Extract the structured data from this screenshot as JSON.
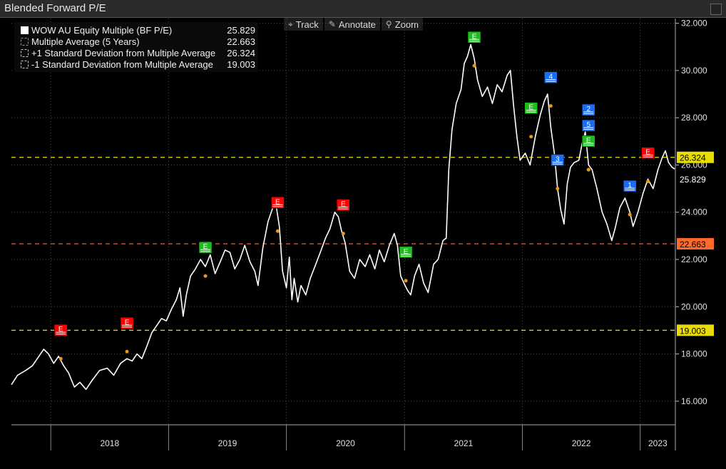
{
  "window": {
    "title": "Blended Forward P/E"
  },
  "toolbar": {
    "items": [
      {
        "label": "Track",
        "icon": "crosshair-icon"
      },
      {
        "label": "Annotate",
        "icon": "pencil-icon"
      },
      {
        "label": "Zoom",
        "icon": "magnifier-icon"
      }
    ]
  },
  "colors": {
    "series": "#ffffff",
    "average": "#ff6a2a",
    "std": "#e8dd00",
    "grid": "#4a4a4a",
    "event_red": "#ff0000",
    "event_green": "#1ebd1e",
    "event_blue": "#1a6cf5"
  },
  "chart_data": {
    "type": "line",
    "title": "Blended Forward P/E",
    "xlabel": "",
    "ylabel": "",
    "xlim": [
      "2017-09-01",
      "2023-04-20"
    ],
    "ylim": [
      15,
      32.2
    ],
    "y_ticks": [
      "32.000",
      "30.000",
      "28.000",
      "26.000",
      "24.000",
      "22.000",
      "20.000",
      "18.000",
      "16.000"
    ],
    "x_tick_labels": [
      "2018",
      "2019",
      "2020",
      "2021",
      "2022",
      "2023"
    ],
    "legend": [
      {
        "name": "WOW AU Equity Multiple (BF P/E)",
        "value": "25.829",
        "color": "#ffffff",
        "style": "solid"
      },
      {
        "name": "Multiple Average (5 Years)",
        "value": "22.663",
        "color": "#ff6a2a",
        "style": "dashed"
      },
      {
        "name": "+1 Standard Deviation from Multiple Average",
        "value": "26.324",
        "color": "#e8dd00",
        "style": "dashed"
      },
      {
        "name": "-1 Standard Deviation from Multiple Average",
        "value": "19.003",
        "color": "#e8dd00",
        "style": "dashed"
      }
    ],
    "series": [
      {
        "name": "WOW AU Equity Multiple (BF P/E)",
        "points": [
          [
            "2017-09-01",
            16.7
          ],
          [
            "2017-09-20",
            17.1
          ],
          [
            "2017-10-15",
            17.3
          ],
          [
            "2017-11-05",
            17.5
          ],
          [
            "2017-11-25",
            17.9
          ],
          [
            "2017-12-10",
            18.2
          ],
          [
            "2017-12-25",
            18.0
          ],
          [
            "2018-01-10",
            17.6
          ],
          [
            "2018-01-25",
            17.9
          ],
          [
            "2018-02-10",
            17.5
          ],
          [
            "2018-02-25",
            17.2
          ],
          [
            "2018-03-15",
            16.6
          ],
          [
            "2018-04-01",
            16.8
          ],
          [
            "2018-04-20",
            16.5
          ],
          [
            "2018-05-10",
            16.9
          ],
          [
            "2018-06-01",
            17.3
          ],
          [
            "2018-06-25",
            17.4
          ],
          [
            "2018-07-15",
            17.1
          ],
          [
            "2018-08-05",
            17.6
          ],
          [
            "2018-08-25",
            17.8
          ],
          [
            "2018-09-10",
            17.7
          ],
          [
            "2018-09-25",
            18.0
          ],
          [
            "2018-10-10",
            17.8
          ],
          [
            "2018-10-25",
            18.3
          ],
          [
            "2018-11-10",
            18.9
          ],
          [
            "2018-11-25",
            19.2
          ],
          [
            "2018-12-10",
            19.5
          ],
          [
            "2018-12-25",
            19.4
          ],
          [
            "2019-01-10",
            19.9
          ],
          [
            "2019-01-25",
            20.3
          ],
          [
            "2019-02-05",
            20.8
          ],
          [
            "2019-02-15",
            19.6
          ],
          [
            "2019-02-25",
            20.5
          ],
          [
            "2019-03-10",
            21.3
          ],
          [
            "2019-03-25",
            21.6
          ],
          [
            "2019-04-10",
            22.0
          ],
          [
            "2019-04-25",
            21.7
          ],
          [
            "2019-05-10",
            22.2
          ],
          [
            "2019-05-25",
            21.4
          ],
          [
            "2019-06-10",
            21.9
          ],
          [
            "2019-06-25",
            22.4
          ],
          [
            "2019-07-10",
            22.3
          ],
          [
            "2019-07-25",
            21.6
          ],
          [
            "2019-08-10",
            22.0
          ],
          [
            "2019-08-25",
            22.6
          ],
          [
            "2019-09-10",
            21.9
          ],
          [
            "2019-09-25",
            21.5
          ],
          [
            "2019-10-05",
            20.9
          ],
          [
            "2019-10-20",
            22.5
          ],
          [
            "2019-11-05",
            23.6
          ],
          [
            "2019-11-20",
            24.2
          ],
          [
            "2019-11-30",
            24.3
          ],
          [
            "2019-12-10",
            23.4
          ],
          [
            "2019-12-20",
            21.5
          ],
          [
            "2020-01-01",
            20.8
          ],
          [
            "2020-01-10",
            22.1
          ],
          [
            "2020-01-18",
            20.3
          ],
          [
            "2020-01-25",
            21.2
          ],
          [
            "2020-02-05",
            20.2
          ],
          [
            "2020-02-15",
            20.9
          ],
          [
            "2020-03-01",
            20.5
          ],
          [
            "2020-03-15",
            21.2
          ],
          [
            "2020-04-01",
            21.8
          ],
          [
            "2020-04-15",
            22.3
          ],
          [
            "2020-05-01",
            22.9
          ],
          [
            "2020-05-15",
            23.3
          ],
          [
            "2020-05-30",
            24.0
          ],
          [
            "2020-06-10",
            23.8
          ],
          [
            "2020-06-20",
            23.2
          ],
          [
            "2020-07-01",
            22.7
          ],
          [
            "2020-07-15",
            21.5
          ],
          [
            "2020-07-30",
            21.2
          ],
          [
            "2020-08-15",
            22.0
          ],
          [
            "2020-09-01",
            21.7
          ],
          [
            "2020-09-15",
            22.2
          ],
          [
            "2020-10-01",
            21.6
          ],
          [
            "2020-10-15",
            22.4
          ],
          [
            "2020-10-30",
            21.9
          ],
          [
            "2020-11-15",
            22.6
          ],
          [
            "2020-11-30",
            23.1
          ],
          [
            "2020-12-10",
            22.6
          ],
          [
            "2020-12-20",
            21.3
          ],
          [
            "2020-12-30",
            21.0
          ],
          [
            "2021-01-10",
            20.7
          ],
          [
            "2021-01-20",
            20.5
          ],
          [
            "2021-02-01",
            21.3
          ],
          [
            "2021-02-15",
            21.8
          ],
          [
            "2021-03-01",
            21.0
          ],
          [
            "2021-03-15",
            20.6
          ],
          [
            "2021-04-01",
            21.8
          ],
          [
            "2021-04-15",
            22.0
          ],
          [
            "2021-04-30",
            22.8
          ],
          [
            "2021-05-10",
            22.9
          ],
          [
            "2021-05-18",
            25.8
          ],
          [
            "2021-05-28",
            27.5
          ],
          [
            "2021-06-10",
            28.6
          ],
          [
            "2021-06-25",
            29.2
          ],
          [
            "2021-07-05",
            30.3
          ],
          [
            "2021-07-15",
            30.6
          ],
          [
            "2021-07-25",
            31.1
          ],
          [
            "2021-08-05",
            30.5
          ],
          [
            "2021-08-15",
            29.6
          ],
          [
            "2021-08-30",
            28.9
          ],
          [
            "2021-09-15",
            29.3
          ],
          [
            "2021-09-30",
            28.6
          ],
          [
            "2021-10-15",
            29.4
          ],
          [
            "2021-10-30",
            29.1
          ],
          [
            "2021-11-15",
            29.8
          ],
          [
            "2021-11-25",
            30.0
          ],
          [
            "2021-12-05",
            28.5
          ],
          [
            "2021-12-15",
            27.2
          ],
          [
            "2021-12-25",
            26.2
          ],
          [
            "2022-01-10",
            26.5
          ],
          [
            "2022-01-25",
            26.0
          ],
          [
            "2022-02-10",
            27.2
          ],
          [
            "2022-02-25",
            28.1
          ],
          [
            "2022-03-10",
            28.7
          ],
          [
            "2022-03-20",
            29.0
          ],
          [
            "2022-03-30",
            27.6
          ],
          [
            "2022-04-10",
            26.5
          ],
          [
            "2022-04-20",
            25.0
          ],
          [
            "2022-04-30",
            24.1
          ],
          [
            "2022-05-10",
            23.5
          ],
          [
            "2022-05-20",
            25.2
          ],
          [
            "2022-05-30",
            25.9
          ],
          [
            "2022-06-10",
            26.1
          ],
          [
            "2022-06-25",
            26.2
          ],
          [
            "2022-07-05",
            26.9
          ],
          [
            "2022-07-15",
            27.4
          ],
          [
            "2022-07-25",
            26.0
          ],
          [
            "2022-08-05",
            25.8
          ],
          [
            "2022-08-20",
            25.0
          ],
          [
            "2022-09-05",
            24.0
          ],
          [
            "2022-09-20",
            23.5
          ],
          [
            "2022-10-05",
            22.8
          ],
          [
            "2022-10-15",
            23.3
          ],
          [
            "2022-10-30",
            24.2
          ],
          [
            "2022-11-15",
            24.6
          ],
          [
            "2022-11-30",
            24.0
          ],
          [
            "2022-12-10",
            23.4
          ],
          [
            "2022-12-25",
            24.0
          ],
          [
            "2023-01-10",
            24.8
          ],
          [
            "2023-01-25",
            25.4
          ],
          [
            "2023-02-10",
            25.0
          ],
          [
            "2023-02-25",
            25.8
          ],
          [
            "2023-03-10",
            26.3
          ],
          [
            "2023-03-20",
            26.6
          ],
          [
            "2023-03-30",
            26.1
          ],
          [
            "2023-04-10",
            25.9
          ],
          [
            "2023-04-18",
            25.829
          ]
        ]
      }
    ],
    "reference_lines": [
      {
        "name": "Multiple Average (5 Years)",
        "y": 22.663,
        "label": "22.663",
        "color": "#ff6a2a"
      },
      {
        "name": "+1 Standard Deviation from Multiple Average",
        "y": 26.324,
        "label": "26.324",
        "color": "#e8dd00"
      },
      {
        "name": "-1 Standard Deviation from Multiple Average",
        "y": 19.003,
        "label": "19.003",
        "color": "#e8dd00"
      }
    ],
    "last_value_label": "25.829",
    "event_markers": [
      {
        "date": "2018-02-01",
        "y": 17.8,
        "label": "E",
        "color": "red"
      },
      {
        "date": "2018-08-25",
        "y": 18.1,
        "label": "E",
        "color": "red"
      },
      {
        "date": "2019-04-25",
        "y": 21.3,
        "label": "E",
        "color": "green"
      },
      {
        "date": "2019-12-05",
        "y": 23.2,
        "label": "E",
        "color": "red"
      },
      {
        "date": "2020-06-25",
        "y": 23.1,
        "label": "E",
        "color": "red"
      },
      {
        "date": "2021-01-05",
        "y": 21.1,
        "label": "E",
        "color": "green"
      },
      {
        "date": "2021-08-05",
        "y": 30.2,
        "label": "E",
        "color": "green"
      },
      {
        "date": "2022-01-28",
        "y": 27.2,
        "label": "E",
        "color": "green"
      },
      {
        "date": "2022-03-30",
        "y": 28.5,
        "label": "4",
        "color": "blue"
      },
      {
        "date": "2022-04-20",
        "y": 25.0,
        "label": "3",
        "color": "blue"
      },
      {
        "date": "2022-07-25",
        "y": 25.8,
        "label": "E",
        "color": "green"
      },
      {
        "date": "2022-07-25",
        "y": 25.8,
        "label": "5",
        "color": "blue"
      },
      {
        "date": "2022-07-25",
        "y": 25.8,
        "label": "2",
        "color": "blue"
      },
      {
        "date": "2022-11-30",
        "y": 23.9,
        "label": "1",
        "color": "blue"
      },
      {
        "date": "2023-01-25",
        "y": 25.3,
        "label": "E",
        "color": "red"
      }
    ]
  }
}
